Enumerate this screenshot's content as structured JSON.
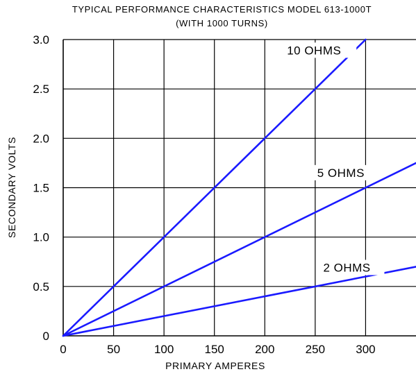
{
  "chart_data": {
    "type": "line",
    "title": "TYPICAL PERFORMANCE CHARACTERISTICS MODEL 613-1000T",
    "subtitle": "(WITH 1000 TURNS)",
    "xlabel": "PRIMARY AMPERES",
    "ylabel": "SECONDARY VOLTS",
    "xlim": [
      0,
      350
    ],
    "ylim": [
      0,
      3.0
    ],
    "x_ticks": [
      "0",
      "50",
      "100",
      "150",
      "200",
      "250",
      "300"
    ],
    "y_ticks": [
      "0",
      "0.5",
      "1.0",
      "1.5",
      "2.0",
      "2.5",
      "3.0"
    ],
    "grid": true,
    "series_color": "#1a1aff",
    "series": [
      {
        "name": "10 OHMS",
        "x": [
          0,
          300
        ],
        "y": [
          0,
          3.0
        ]
      },
      {
        "name": "5 OHMS",
        "x": [
          0,
          350
        ],
        "y": [
          0,
          1.75
        ]
      },
      {
        "name": "2 OHMS",
        "x": [
          0,
          350
        ],
        "y": [
          0,
          0.7
        ]
      }
    ]
  }
}
